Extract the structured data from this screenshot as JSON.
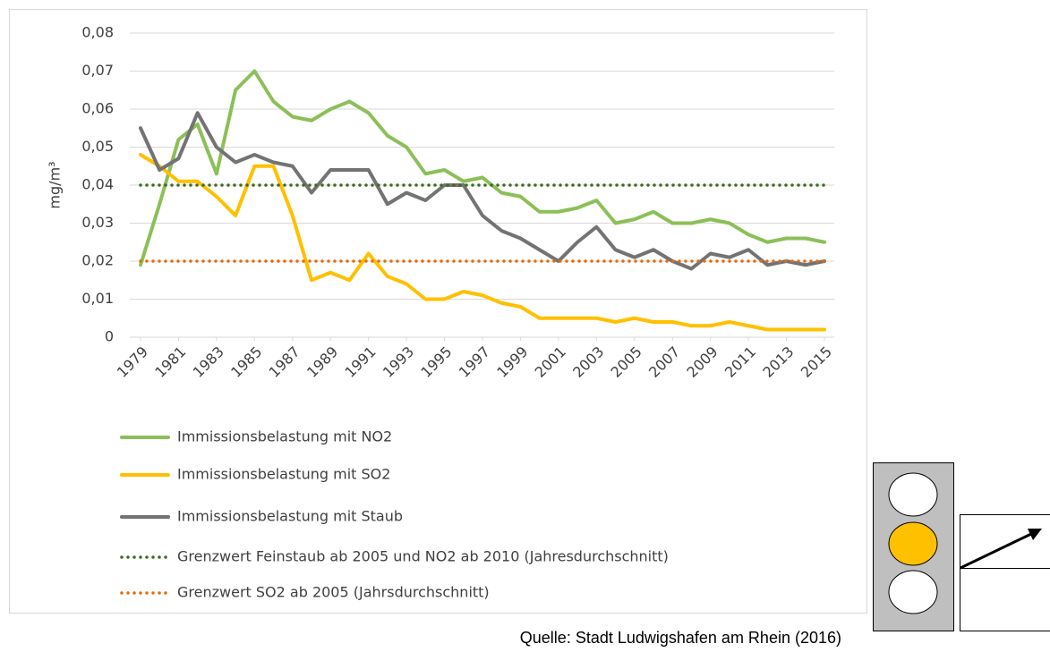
{
  "chart_data": {
    "type": "line",
    "y_label": "mg/m³",
    "source": "Quelle: Stadt Ludwigshafen am Rhein (2016)",
    "x": [
      1979,
      1980,
      1981,
      1982,
      1983,
      1984,
      1985,
      1986,
      1987,
      1988,
      1989,
      1990,
      1991,
      1992,
      1993,
      1994,
      1995,
      1996,
      1997,
      1998,
      1999,
      2000,
      2001,
      2002,
      2003,
      2004,
      2005,
      2006,
      2007,
      2008,
      2009,
      2010,
      2011,
      2012,
      2013,
      2014,
      2015
    ],
    "xlim": [
      1979,
      2015
    ],
    "xticks": [
      1979,
      1981,
      1983,
      1985,
      1987,
      1989,
      1991,
      1993,
      1995,
      1997,
      1999,
      2001,
      2003,
      2005,
      2007,
      2009,
      2011,
      2013,
      2015
    ],
    "ylim": [
      0,
      0.08
    ],
    "yticks": [
      0,
      {
        "value": 0.01,
        "label": "0,01"
      },
      {
        "value": 0.02,
        "label": "0,02"
      },
      {
        "value": 0.03,
        "label": "0,03"
      },
      {
        "value": 0.04,
        "label": "0,04"
      },
      {
        "value": 0.05,
        "label": "0,05"
      },
      {
        "value": 0.06,
        "label": "0,06"
      },
      {
        "value": 0.07,
        "label": "0,07"
      },
      {
        "value": 0.08,
        "label": "0,08"
      }
    ],
    "grid": true,
    "series": [
      {
        "name": "Immissionsbelastung mit NO2",
        "color": "#8cbf58",
        "style": "solid",
        "values": [
          0.019,
          0.035,
          0.052,
          0.056,
          0.043,
          0.065,
          0.07,
          0.062,
          0.058,
          0.057,
          0.06,
          0.062,
          0.059,
          0.053,
          0.05,
          0.043,
          0.044,
          0.041,
          0.042,
          0.038,
          0.037,
          0.033,
          0.033,
          0.034,
          0.036,
          0.03,
          0.031,
          0.033,
          0.03,
          0.03,
          0.031,
          0.03,
          0.027,
          0.025,
          0.026,
          0.026,
          0.025
        ]
      },
      {
        "name": "Immissionsbelastung mit SO2",
        "color": "#ffc000",
        "style": "solid",
        "values": [
          0.048,
          0.045,
          0.041,
          0.041,
          0.037,
          0.032,
          0.045,
          0.045,
          0.032,
          0.015,
          0.017,
          0.015,
          0.022,
          0.016,
          0.014,
          0.01,
          0.01,
          0.012,
          0.011,
          0.009,
          0.008,
          0.005,
          0.005,
          0.005,
          0.005,
          0.004,
          0.005,
          0.004,
          0.004,
          0.003,
          0.003,
          0.004,
          0.003,
          0.002,
          0.002,
          0.002,
          0.002
        ]
      },
      {
        "name": "Immissionsbelastung mit Staub",
        "color": "#737373",
        "style": "solid",
        "values": [
          0.055,
          0.044,
          0.047,
          0.059,
          0.05,
          0.046,
          0.048,
          0.046,
          0.045,
          0.038,
          0.044,
          0.044,
          0.044,
          0.035,
          0.038,
          0.036,
          0.04,
          0.04,
          0.032,
          0.028,
          0.026,
          0.023,
          0.02,
          0.025,
          0.029,
          0.023,
          0.021,
          0.023,
          0.02,
          0.018,
          0.022,
          0.021,
          0.023,
          0.019,
          0.02,
          0.019,
          0.02
        ]
      },
      {
        "name": "Grenzwert Feinstaub ab 2005 und NO2 ab 2010 (Jahresdurchschnitt)",
        "color": "#3d6b1e",
        "style": "dotted",
        "values": [
          0.04,
          0.04,
          0.04,
          0.04,
          0.04,
          0.04,
          0.04,
          0.04,
          0.04,
          0.04,
          0.04,
          0.04,
          0.04,
          0.04,
          0.04,
          0.04,
          0.04,
          0.04,
          0.04,
          0.04,
          0.04,
          0.04,
          0.04,
          0.04,
          0.04,
          0.04,
          0.04,
          0.04,
          0.04,
          0.04,
          0.04,
          0.04,
          0.04,
          0.04,
          0.04,
          0.04,
          0.04
        ]
      },
      {
        "name": "Grenzwert SO2 ab 2005 (Jahrsdurchschnitt)",
        "color": "#e46c0a",
        "style": "dotted",
        "values": [
          0.02,
          0.02,
          0.02,
          0.02,
          0.02,
          0.02,
          0.02,
          0.02,
          0.02,
          0.02,
          0.02,
          0.02,
          0.02,
          0.02,
          0.02,
          0.02,
          0.02,
          0.02,
          0.02,
          0.02,
          0.02,
          0.02,
          0.02,
          0.02,
          0.02,
          0.02,
          0.02,
          0.02,
          0.02,
          0.02,
          0.02,
          0.02,
          0.02,
          0.02,
          0.02,
          0.02,
          0.02
        ]
      }
    ]
  }
}
